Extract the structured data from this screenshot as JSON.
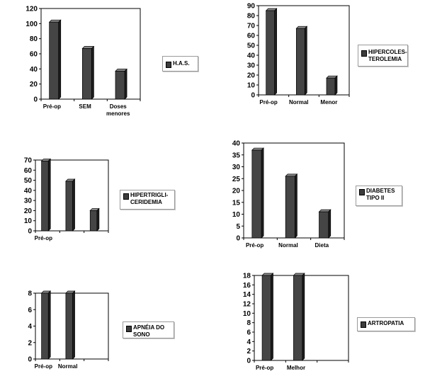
{
  "chart_data": [
    {
      "type": "bar",
      "categories": [
        "Pré-op",
        "SEM",
        "Doses\nmenores"
      ],
      "values": [
        102,
        67,
        37
      ],
      "ylim": [
        0,
        120
      ],
      "yticks": [
        0,
        20,
        40,
        60,
        80,
        100,
        120
      ],
      "legend": "H.A.S.",
      "grid": false,
      "legend_position": "right"
    },
    {
      "type": "bar",
      "categories": [
        "Pré-op",
        "Normal",
        "Menor"
      ],
      "values": [
        85,
        67,
        17
      ],
      "ylim": [
        0,
        90
      ],
      "yticks": [
        0,
        10,
        20,
        30,
        40,
        50,
        60,
        70,
        80,
        90
      ],
      "legend": "HIPERCOLES-\nTEROLEMIA",
      "grid": false,
      "legend_position": "right"
    },
    {
      "type": "bar",
      "categories": [
        "Pré-op",
        "",
        ""
      ],
      "values": [
        69,
        49,
        20
      ],
      "ylim": [
        0,
        70
      ],
      "yticks": [
        0,
        10,
        20,
        30,
        40,
        50,
        60,
        70
      ],
      "legend": "HIPERTRIGLI-\nCERIDEMIA",
      "grid": false,
      "legend_position": "right"
    },
    {
      "type": "bar",
      "categories": [
        "Pré-op",
        "Normal",
        "Dieta"
      ],
      "values": [
        37,
        26,
        11
      ],
      "ylim": [
        0,
        40
      ],
      "yticks": [
        0,
        5,
        10,
        15,
        20,
        25,
        30,
        35,
        40
      ],
      "legend": "DIABETES\nTIPO II",
      "grid": false,
      "legend_position": "right"
    },
    {
      "type": "bar",
      "categories": [
        "Pré-op",
        "Normal",
        ""
      ],
      "values": [
        8,
        8,
        0
      ],
      "ylim": [
        0,
        8
      ],
      "yticks": [
        0,
        2,
        4,
        6,
        8
      ],
      "legend": "APNÉIA DO\nSONO",
      "grid": false,
      "legend_position": "right"
    },
    {
      "type": "bar",
      "categories": [
        "Pré-op",
        "Melhor",
        ""
      ],
      "values": [
        18,
        18,
        0
      ],
      "ylim": [
        0,
        18
      ],
      "yticks": [
        0,
        2,
        4,
        6,
        8,
        10,
        12,
        14,
        16,
        18
      ],
      "legend": "ARTROPATIA",
      "grid": false,
      "legend_position": "right"
    }
  ],
  "colors": {
    "bar_front": "#454545",
    "bar_side": "#1e1e1e",
    "bar_top": "#8a8a8a",
    "axis": "#000000",
    "legend_swatch": "#3c3c3c"
  }
}
